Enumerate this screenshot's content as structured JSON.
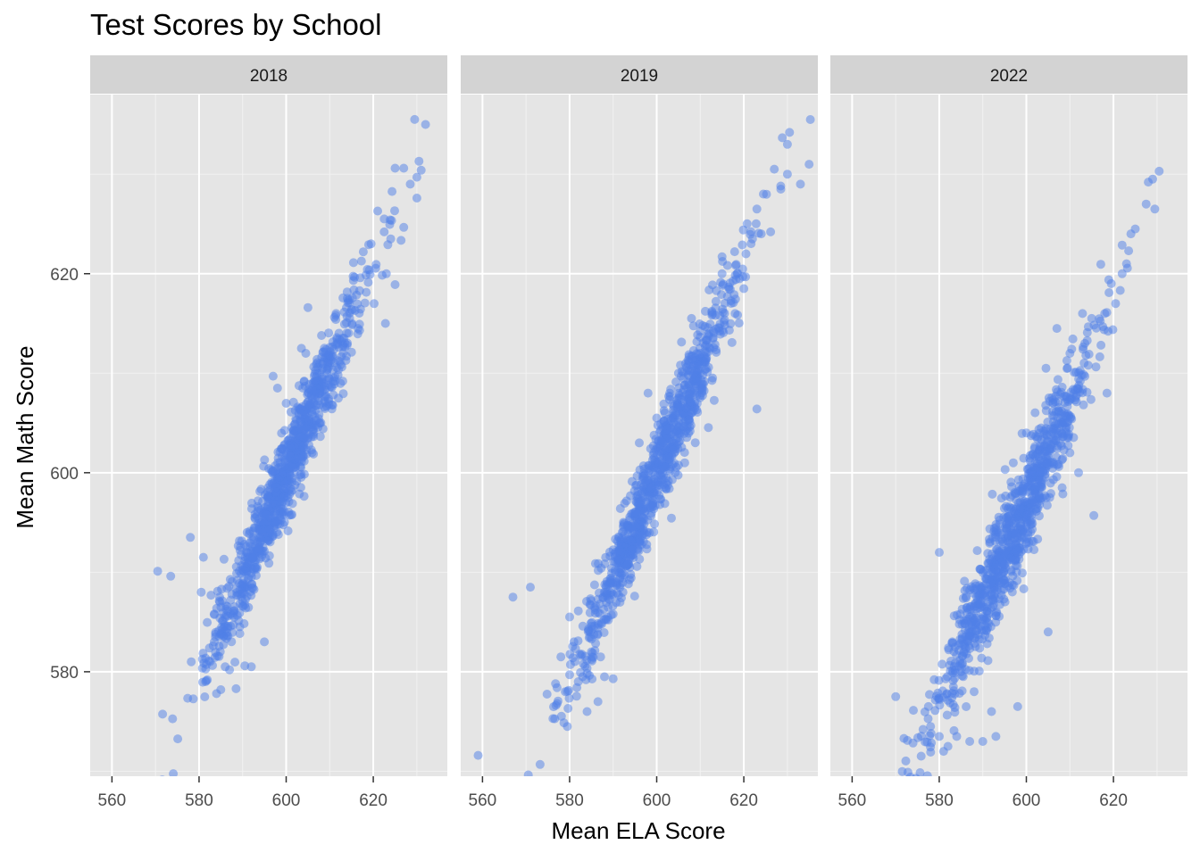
{
  "chart_data": {
    "type": "scatter",
    "title": "Test Scores by School",
    "xlabel": "Mean ELA Score",
    "ylabel": "Mean Math Score",
    "xlim": [
      555,
      637
    ],
    "ylim": [
      569.5,
      638
    ],
    "x_ticks": [
      560,
      580,
      600,
      620
    ],
    "y_ticks": [
      580,
      600,
      620
    ],
    "grid": true,
    "point_color": "#4F7FE8",
    "point_opacity": 0.5,
    "panel_background": "#E5E5E5",
    "strip_background": "#D3D3D3",
    "facets": [
      {
        "label": "2018",
        "summary": {
          "x_center": 600,
          "x_sd": 9,
          "slope": 1.06,
          "resid_sd": 2.2,
          "n": 950
        },
        "points": [
          [
            570.5,
            590.1
          ],
          [
            573.5,
            589.6
          ],
          [
            578.2,
            581.0
          ],
          [
            581.5,
            579.0
          ],
          [
            584.0,
            577.8
          ],
          [
            585.0,
            578.2
          ],
          [
            588.5,
            578.3
          ],
          [
            583.5,
            583.0
          ],
          [
            586.0,
            580.5
          ],
          [
            590.5,
            580.6
          ],
          [
            629.5,
            635.5
          ],
          [
            632.0,
            635.0
          ],
          [
            630.5,
            631.3
          ],
          [
            627.0,
            630.6
          ],
          [
            625.0,
            630.6
          ],
          [
            628.5,
            629.0
          ],
          [
            630.0,
            629.7
          ],
          [
            631.0,
            630.4
          ],
          [
            630.0,
            627.6
          ],
          [
            621.0,
            626.3
          ],
          [
            622.5,
            625.5
          ],
          [
            624.0,
            623.5
          ],
          [
            619.5,
            623.0
          ],
          [
            623.0,
            620.0
          ],
          [
            622.8,
            615.0
          ],
          [
            625.0,
            618.9
          ],
          [
            605.0,
            616.6
          ],
          [
            597.0,
            609.7
          ],
          [
            598.0,
            608.5
          ],
          [
            603.5,
            612.5
          ],
          [
            578.0,
            593.5
          ],
          [
            581.0,
            591.5
          ],
          [
            580.5,
            588.0
          ],
          [
            613.0,
            609.2
          ],
          [
            616.5,
            614.5
          ],
          [
            595.0,
            583.0
          ],
          [
            592.0,
            580.5
          ],
          [
            587.0,
            580.2
          ],
          [
            604.5,
            612.0
          ],
          [
            612.0,
            607.5
          ]
        ]
      },
      {
        "label": "2019",
        "summary": {
          "x_center": 600,
          "x_sd": 9.5,
          "slope": 1.04,
          "resid_sd": 2.2,
          "n": 950
        },
        "points": [
          [
            559.0,
            571.6
          ],
          [
            567.0,
            587.5
          ],
          [
            571.0,
            588.5
          ],
          [
            579.0,
            578.0
          ],
          [
            580.0,
            579.7
          ],
          [
            582.0,
            579.0
          ],
          [
            583.0,
            579.5
          ],
          [
            586.5,
            577.0
          ],
          [
            590.0,
            579.3
          ],
          [
            584.0,
            576.0
          ],
          [
            630.5,
            634.2
          ],
          [
            630.0,
            633.0
          ],
          [
            635.0,
            631.0
          ],
          [
            627.0,
            630.5
          ],
          [
            630.0,
            630.0
          ],
          [
            633.0,
            629.0
          ],
          [
            628.5,
            628.5
          ],
          [
            624.5,
            628.0
          ],
          [
            623.0,
            626.5
          ],
          [
            624.0,
            624.0
          ],
          [
            622.0,
            623.5
          ],
          [
            620.5,
            622.0
          ],
          [
            615.0,
            621.7
          ],
          [
            623.0,
            606.4
          ],
          [
            612.0,
            614.0
          ],
          [
            605.0,
            610.0
          ],
          [
            608.0,
            615.5
          ],
          [
            603.0,
            608.0
          ],
          [
            600.0,
            605.5
          ],
          [
            596.0,
            603.0
          ],
          [
            580.0,
            585.5
          ],
          [
            581.0,
            583.0
          ],
          [
            578.0,
            581.5
          ],
          [
            620.0,
            618.5
          ],
          [
            618.0,
            616.0
          ],
          [
            610.0,
            612.0
          ],
          [
            598.0,
            608.0
          ],
          [
            615.0,
            620.0
          ],
          [
            585.0,
            582.0
          ],
          [
            588.0,
            579.5
          ]
        ]
      },
      {
        "label": "2022",
        "summary": {
          "x_center": 597,
          "x_sd": 9,
          "slope": 1.0,
          "resid_sd": 2.5,
          "n": 950
        },
        "points": [
          [
            570.0,
            577.5
          ],
          [
            577.5,
            576.5
          ],
          [
            578.0,
            574.5
          ],
          [
            580.0,
            573.5
          ],
          [
            581.0,
            572.0
          ],
          [
            582.0,
            572.5
          ],
          [
            584.0,
            573.5
          ],
          [
            587.0,
            573.0
          ],
          [
            590.0,
            573.0
          ],
          [
            593.0,
            573.5
          ],
          [
            580.0,
            592.0
          ],
          [
            615.5,
            595.7
          ],
          [
            618.5,
            608.0
          ],
          [
            630.5,
            630.3
          ],
          [
            629.0,
            629.5
          ],
          [
            628.0,
            629.2
          ],
          [
            627.5,
            627.0
          ],
          [
            629.5,
            626.5
          ],
          [
            625.0,
            624.5
          ],
          [
            624.0,
            624.0
          ],
          [
            623.5,
            622.3
          ],
          [
            623.0,
            621.0
          ],
          [
            622.0,
            620.0
          ],
          [
            619.5,
            619.0
          ],
          [
            620.5,
            617.0
          ],
          [
            618.0,
            616.0
          ],
          [
            615.0,
            615.5
          ],
          [
            610.0,
            612.0
          ],
          [
            607.0,
            614.5
          ],
          [
            604.5,
            610.5
          ],
          [
            600.0,
            604.0
          ],
          [
            597.0,
            601.0
          ],
          [
            610.0,
            602.0
          ],
          [
            612.0,
            600.0
          ],
          [
            583.0,
            583.0
          ],
          [
            585.0,
            580.0
          ],
          [
            588.0,
            578.0
          ],
          [
            592.0,
            576.0
          ],
          [
            598.0,
            576.5
          ],
          [
            605.0,
            584.0
          ]
        ]
      }
    ]
  }
}
